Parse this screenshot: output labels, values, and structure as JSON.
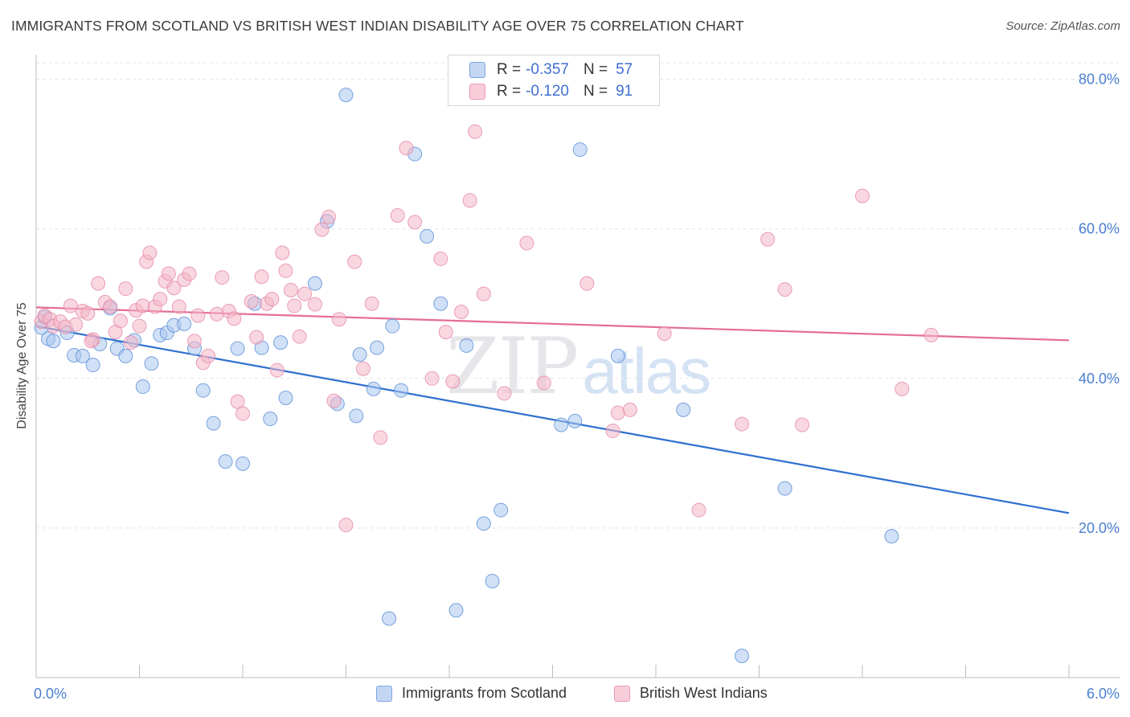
{
  "header": {
    "title": "IMMIGRANTS FROM SCOTLAND VS BRITISH WEST INDIAN DISABILITY AGE OVER 75 CORRELATION CHART",
    "source": "Source: ZipAtlas.com"
  },
  "watermark": {
    "zip": "ZIP",
    "atlas": "atlas"
  },
  "legend": {
    "rows": [
      {
        "r_label": "R =",
        "r_value": "-0.357",
        "n_label": "N =",
        "n_value": "57",
        "color": "#a9c6ee"
      },
      {
        "r_label": "R =",
        "r_value": "-0.120",
        "n_label": "N =",
        "n_value": "91",
        "color": "#f4b6c8"
      }
    ]
  },
  "chart_data": {
    "type": "scatter",
    "title": "IMMIGRANTS FROM SCOTLAND VS BRITISH WEST INDIAN DISABILITY AGE OVER 75 CORRELATION CHART",
    "xlabel": "",
    "ylabel": "Disability Age Over 75",
    "xlim": [
      0,
      6
    ],
    "ylim": [
      0,
      82
    ],
    "x_tick_labels": [
      "0.0%",
      "6.0%"
    ],
    "y_ticks": [
      20,
      40,
      60,
      80
    ],
    "y_tick_labels": [
      "20.0%",
      "40.0%",
      "60.0%",
      "80.0%"
    ],
    "grid": true,
    "legend_position": "top-center",
    "series": [
      {
        "name": "Immigrants from Scotland",
        "color": "#5b8fd6",
        "fill": "#a9c6ee",
        "trend": {
          "x": [
            0,
            6
          ],
          "y": [
            47.0,
            22.0
          ],
          "color": "#2e6fd0"
        },
        "points": [
          [
            0.03,
            46.8
          ],
          [
            0.05,
            48.2
          ],
          [
            0.07,
            45.3
          ],
          [
            0.1,
            45.0
          ],
          [
            0.18,
            46.1
          ],
          [
            0.22,
            43.1
          ],
          [
            0.27,
            43.0
          ],
          [
            0.33,
            41.8
          ],
          [
            0.37,
            44.6
          ],
          [
            0.43,
            49.4
          ],
          [
            0.47,
            44.0
          ],
          [
            0.52,
            43.0
          ],
          [
            0.57,
            45.1
          ],
          [
            0.62,
            38.9
          ],
          [
            0.67,
            42.0
          ],
          [
            0.72,
            45.8
          ],
          [
            0.76,
            46.1
          ],
          [
            0.8,
            47.1
          ],
          [
            0.86,
            47.3
          ],
          [
            0.92,
            44.0
          ],
          [
            0.97,
            38.4
          ],
          [
            1.03,
            34.0
          ],
          [
            1.1,
            28.9
          ],
          [
            1.17,
            44.0
          ],
          [
            1.2,
            28.6
          ],
          [
            1.27,
            50.0
          ],
          [
            1.31,
            44.1
          ],
          [
            1.36,
            34.6
          ],
          [
            1.42,
            44.8
          ],
          [
            1.45,
            37.4
          ],
          [
            1.62,
            52.7
          ],
          [
            1.69,
            61.0
          ],
          [
            1.75,
            36.6
          ],
          [
            1.8,
            77.9
          ],
          [
            1.86,
            35.0
          ],
          [
            1.88,
            43.2
          ],
          [
            1.96,
            38.6
          ],
          [
            1.98,
            44.1
          ],
          [
            2.07,
            47.0
          ],
          [
            2.12,
            38.4
          ],
          [
            2.2,
            70.0
          ],
          [
            2.27,
            59.0
          ],
          [
            2.35,
            50.0
          ],
          [
            2.44,
            9.0
          ],
          [
            2.5,
            44.4
          ],
          [
            2.6,
            20.6
          ],
          [
            2.65,
            12.9
          ],
          [
            2.7,
            22.4
          ],
          [
            3.05,
            33.8
          ],
          [
            3.13,
            34.3
          ],
          [
            3.16,
            70.6
          ],
          [
            3.38,
            43.0
          ],
          [
            3.76,
            35.8
          ],
          [
            2.05,
            7.9
          ],
          [
            4.1,
            2.9
          ],
          [
            4.35,
            25.3
          ],
          [
            4.97,
            18.9
          ]
        ]
      },
      {
        "name": "British West Indians",
        "color": "#e58aa6",
        "fill": "#f4b6c8",
        "trend": {
          "x": [
            0,
            6
          ],
          "y": [
            49.5,
            45.1
          ],
          "color": "#e46d95"
        },
        "points": [
          [
            0.03,
            47.6
          ],
          [
            0.05,
            48.4
          ],
          [
            0.08,
            47.9
          ],
          [
            0.1,
            47.0
          ],
          [
            0.14,
            47.6
          ],
          [
            0.17,
            46.9
          ],
          [
            0.2,
            49.7
          ],
          [
            0.23,
            47.2
          ],
          [
            0.27,
            49.0
          ],
          [
            0.3,
            48.7
          ],
          [
            0.33,
            45.2
          ],
          [
            0.36,
            52.7
          ],
          [
            0.4,
            50.2
          ],
          [
            0.43,
            49.6
          ],
          [
            0.46,
            46.2
          ],
          [
            0.49,
            47.7
          ],
          [
            0.52,
            52.0
          ],
          [
            0.55,
            44.8
          ],
          [
            0.58,
            49.1
          ],
          [
            0.62,
            49.7
          ],
          [
            0.64,
            55.6
          ],
          [
            0.66,
            56.8
          ],
          [
            0.69,
            49.6
          ],
          [
            0.72,
            50.6
          ],
          [
            0.75,
            53.0
          ],
          [
            0.77,
            54.0
          ],
          [
            0.8,
            52.1
          ],
          [
            0.83,
            49.6
          ],
          [
            0.86,
            53.2
          ],
          [
            0.89,
            54.0
          ],
          [
            0.92,
            45.0
          ],
          [
            0.94,
            48.4
          ],
          [
            0.97,
            42.1
          ],
          [
            1.0,
            43.0
          ],
          [
            1.05,
            48.6
          ],
          [
            1.08,
            53.5
          ],
          [
            1.12,
            49.0
          ],
          [
            1.15,
            48.0
          ],
          [
            1.17,
            36.9
          ],
          [
            1.2,
            35.3
          ],
          [
            1.25,
            50.3
          ],
          [
            1.28,
            45.5
          ],
          [
            1.31,
            53.6
          ],
          [
            1.34,
            50.0
          ],
          [
            1.37,
            50.6
          ],
          [
            1.4,
            41.1
          ],
          [
            1.43,
            56.8
          ],
          [
            1.45,
            54.4
          ],
          [
            1.48,
            51.8
          ],
          [
            1.5,
            49.7
          ],
          [
            1.53,
            45.6
          ],
          [
            1.56,
            51.3
          ],
          [
            1.62,
            49.9
          ],
          [
            1.66,
            59.9
          ],
          [
            1.7,
            61.6
          ],
          [
            1.73,
            37.0
          ],
          [
            1.76,
            47.9
          ],
          [
            1.8,
            20.4
          ],
          [
            1.85,
            55.6
          ],
          [
            1.9,
            41.3
          ],
          [
            1.95,
            50.0
          ],
          [
            2.0,
            32.1
          ],
          [
            2.1,
            61.8
          ],
          [
            2.15,
            70.8
          ],
          [
            2.2,
            60.9
          ],
          [
            2.3,
            40.0
          ],
          [
            2.35,
            56.0
          ],
          [
            2.38,
            46.2
          ],
          [
            2.42,
            39.6
          ],
          [
            2.47,
            48.9
          ],
          [
            2.52,
            63.8
          ],
          [
            2.55,
            73.0
          ],
          [
            2.6,
            51.3
          ],
          [
            2.72,
            38.0
          ],
          [
            2.85,
            58.1
          ],
          [
            2.95,
            39.4
          ],
          [
            3.2,
            52.7
          ],
          [
            3.35,
            33.0
          ],
          [
            3.38,
            35.4
          ],
          [
            3.45,
            35.8
          ],
          [
            3.65,
            46.0
          ],
          [
            3.85,
            22.4
          ],
          [
            4.1,
            33.9
          ],
          [
            4.25,
            58.6
          ],
          [
            4.35,
            51.9
          ],
          [
            4.45,
            33.8
          ],
          [
            4.8,
            64.4
          ],
          [
            5.03,
            38.6
          ],
          [
            5.2,
            45.8
          ],
          [
            0.32,
            45.0
          ],
          [
            0.6,
            47.0
          ]
        ]
      }
    ]
  }
}
